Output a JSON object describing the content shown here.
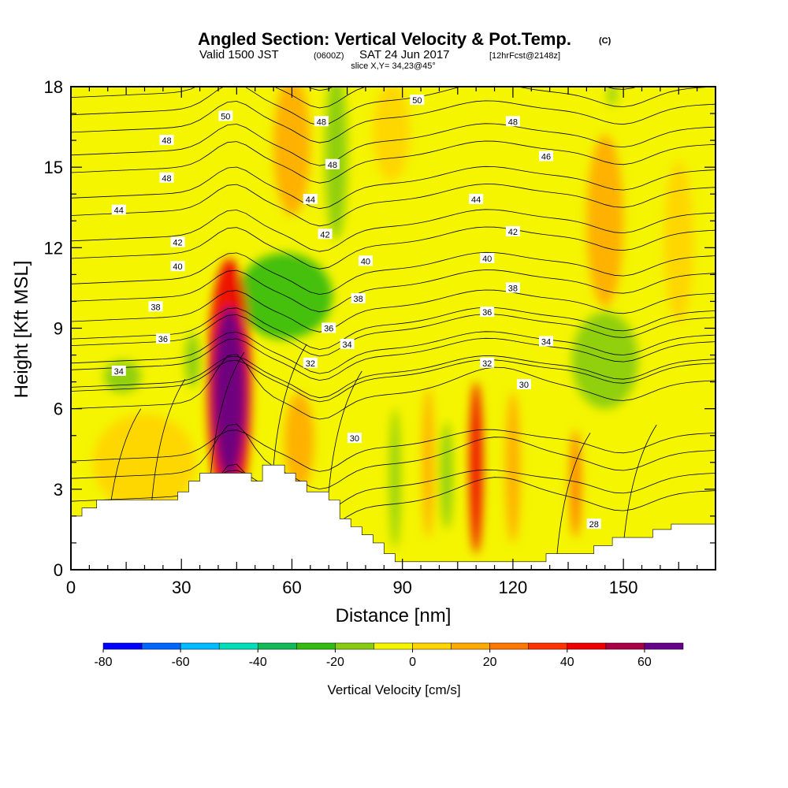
{
  "title": {
    "main": "Angled Section: Vertical Velocity & Pot.Temp.",
    "main_suffix": "(C)",
    "valid_prefix": "Valid 1500 JST",
    "valid_zulu": "(0600Z)",
    "valid_date": "SAT 24 Jun 2017",
    "forecast": "[12hrFcst@2148z]",
    "slice": "slice X,Y= 34,23@45°"
  },
  "chart_data": {
    "type": "heatmap",
    "xlabel": "Distance [nm]",
    "ylabel": "Height [Kft MSL]",
    "xlim": [
      0,
      175
    ],
    "ylim": [
      0,
      18
    ],
    "x_ticks": [
      "0",
      "30",
      "60",
      "90",
      "120",
      "150"
    ],
    "x_tick_values": [
      0,
      30,
      60,
      90,
      120,
      150
    ],
    "y_ticks": [
      "0",
      "3",
      "6",
      "9",
      "12",
      "15",
      "18"
    ],
    "y_tick_values": [
      0,
      3,
      6,
      9,
      12,
      15,
      18
    ],
    "terrain": [
      [
        0,
        2.0
      ],
      [
        3,
        2.0
      ],
      [
        3,
        2.3
      ],
      [
        7,
        2.3
      ],
      [
        7,
        2.6
      ],
      [
        22,
        2.6
      ],
      [
        22,
        2.6
      ],
      [
        29,
        2.6
      ],
      [
        29,
        2.9
      ],
      [
        32,
        2.9
      ],
      [
        32,
        3.3
      ],
      [
        35,
        3.3
      ],
      [
        35,
        3.6
      ],
      [
        49,
        3.6
      ],
      [
        49,
        3.3
      ],
      [
        52,
        3.3
      ],
      [
        52,
        3.9
      ],
      [
        58,
        3.9
      ],
      [
        58,
        3.6
      ],
      [
        61,
        3.6
      ],
      [
        61,
        3.3
      ],
      [
        64,
        3.3
      ],
      [
        64,
        2.9
      ],
      [
        70,
        2.9
      ],
      [
        70,
        2.6
      ],
      [
        73,
        2.6
      ],
      [
        73,
        1.9
      ],
      [
        76,
        1.9
      ],
      [
        76,
        1.6
      ],
      [
        79,
        1.6
      ],
      [
        79,
        1.3
      ],
      [
        82,
        1.3
      ],
      [
        82,
        1.0
      ],
      [
        85,
        1.0
      ],
      [
        85,
        0.6
      ],
      [
        88,
        0.6
      ],
      [
        88,
        0.3
      ],
      [
        129,
        0.3
      ],
      [
        129,
        0.6
      ],
      [
        142,
        0.6
      ],
      [
        142,
        0.9
      ],
      [
        147,
        0.9
      ],
      [
        147,
        1.2
      ],
      [
        158,
        1.2
      ],
      [
        158,
        1.5
      ],
      [
        163,
        1.5
      ],
      [
        163,
        1.7
      ],
      [
        175,
        1.7
      ]
    ],
    "velocity_blobs": [
      {
        "x": 43,
        "y": 6.6,
        "rx": 4.5,
        "ry": 3.2,
        "value": 64
      },
      {
        "x": 43,
        "y": 6.8,
        "rx": 6,
        "ry": 4.8,
        "value": 40
      },
      {
        "x": 110,
        "y": 3.8,
        "rx": 1.8,
        "ry": 3.2,
        "value": 40
      },
      {
        "x": 58,
        "y": 10.2,
        "rx": 13,
        "ry": 1.6,
        "value": -25
      },
      {
        "x": 72,
        "y": 15.5,
        "rx": 3,
        "ry": 3.2,
        "value": -15
      },
      {
        "x": 145,
        "y": 7.8,
        "rx": 9,
        "ry": 1.8,
        "value": -15
      },
      {
        "x": 14,
        "y": 7.2,
        "rx": 5,
        "ry": 0.6,
        "value": -15
      },
      {
        "x": 33,
        "y": 7.8,
        "rx": 2,
        "ry": 1.0,
        "value": -12
      },
      {
        "x": 88,
        "y": 3.4,
        "rx": 1.4,
        "ry": 2.6,
        "value": -12
      },
      {
        "x": 102,
        "y": 3.5,
        "rx": 1.6,
        "ry": 2.0,
        "value": -12
      },
      {
        "x": 147,
        "y": 17.7,
        "rx": 1.2,
        "ry": 0.4,
        "value": -12
      },
      {
        "x": 60,
        "y": 15.8,
        "rx": 5,
        "ry": 2.6,
        "value": 12
      },
      {
        "x": 145,
        "y": 13.0,
        "rx": 5,
        "ry": 3.2,
        "value": 12
      },
      {
        "x": 165,
        "y": 12.2,
        "rx": 4,
        "ry": 3.0,
        "value": 8
      },
      {
        "x": 20,
        "y": 4.0,
        "rx": 14,
        "ry": 1.8,
        "value": 8
      },
      {
        "x": 62,
        "y": 4.8,
        "rx": 4,
        "ry": 1.8,
        "value": 10
      },
      {
        "x": 97,
        "y": 4.0,
        "rx": 1.5,
        "ry": 2.8,
        "value": 10
      },
      {
        "x": 120,
        "y": 3.8,
        "rx": 2,
        "ry": 2.8,
        "value": 10
      },
      {
        "x": 137,
        "y": 3.2,
        "rx": 1.5,
        "ry": 2.0,
        "value": 20
      },
      {
        "x": 87,
        "y": 16.3,
        "rx": 5,
        "ry": 1.8,
        "value": 8
      }
    ],
    "theta_contour_base_heights": [
      [
        28,
        1.9
      ],
      [
        30,
        3.4
      ],
      [
        32,
        6.0
      ],
      [
        34,
        6.8
      ],
      [
        36,
        7.7
      ],
      [
        38,
        8.6
      ],
      [
        40,
        10.0
      ],
      [
        42,
        11.6
      ],
      [
        44,
        13.2
      ],
      [
        46,
        14.8
      ],
      [
        48,
        16.3
      ],
      [
        50,
        17.6
      ]
    ],
    "contour_labels": [
      {
        "text": "50",
        "x": 42,
        "y": 16.9
      },
      {
        "text": "50",
        "x": 94,
        "y": 17.5
      },
      {
        "text": "48",
        "x": 26,
        "y": 16.0
      },
      {
        "text": "48",
        "x": 68,
        "y": 16.7
      },
      {
        "text": "48",
        "x": 120,
        "y": 16.7
      },
      {
        "text": "48",
        "x": 26,
        "y": 14.6
      },
      {
        "text": "48",
        "x": 71,
        "y": 15.1
      },
      {
        "text": "46",
        "x": 129,
        "y": 15.4
      },
      {
        "text": "44",
        "x": 13,
        "y": 13.4
      },
      {
        "text": "44",
        "x": 65,
        "y": 13.8
      },
      {
        "text": "44",
        "x": 110,
        "y": 13.8
      },
      {
        "text": "42",
        "x": 29,
        "y": 12.2
      },
      {
        "text": "42",
        "x": 69,
        "y": 12.5
      },
      {
        "text": "42",
        "x": 120,
        "y": 12.6
      },
      {
        "text": "40",
        "x": 29,
        "y": 11.3
      },
      {
        "text": "40",
        "x": 80,
        "y": 11.5
      },
      {
        "text": "40",
        "x": 113,
        "y": 11.6
      },
      {
        "text": "38",
        "x": 23,
        "y": 9.8
      },
      {
        "text": "38",
        "x": 78,
        "y": 10.1
      },
      {
        "text": "38",
        "x": 120,
        "y": 10.5
      },
      {
        "text": "36",
        "x": 25,
        "y": 8.6
      },
      {
        "text": "36",
        "x": 70,
        "y": 9.0
      },
      {
        "text": "36",
        "x": 113,
        "y": 9.6
      },
      {
        "text": "34",
        "x": 13,
        "y": 7.4
      },
      {
        "text": "34",
        "x": 75,
        "y": 8.4
      },
      {
        "text": "34",
        "x": 129,
        "y": 8.5
      },
      {
        "text": "32",
        "x": 65,
        "y": 7.7
      },
      {
        "text": "32",
        "x": 113,
        "y": 7.7
      },
      {
        "text": "30",
        "x": 77,
        "y": 4.9
      },
      {
        "text": "30",
        "x": 123,
        "y": 6.9
      },
      {
        "text": "28",
        "x": 142,
        "y": 1.7
      }
    ]
  },
  "colorbar": {
    "label": "Vertical Velocity [cm/s]",
    "tick_labels": [
      "-80",
      "-60",
      "-40",
      "-20",
      "0",
      "20",
      "40",
      "60"
    ],
    "tick_values": [
      -80,
      -60,
      -40,
      -20,
      0,
      20,
      40,
      60
    ],
    "levels": [
      -80,
      -70,
      -60,
      -50,
      -40,
      -30,
      -20,
      -10,
      0,
      10,
      20,
      30,
      40,
      50,
      60,
      70
    ],
    "colors": [
      "#0000ff",
      "#0066ff",
      "#00bbff",
      "#00ddbb",
      "#11bb55",
      "#33bb11",
      "#88cc11",
      "#f5f500",
      "#ffd400",
      "#ffaa00",
      "#ff7700",
      "#ff3300",
      "#ee0000",
      "#aa0044",
      "#660088"
    ]
  }
}
